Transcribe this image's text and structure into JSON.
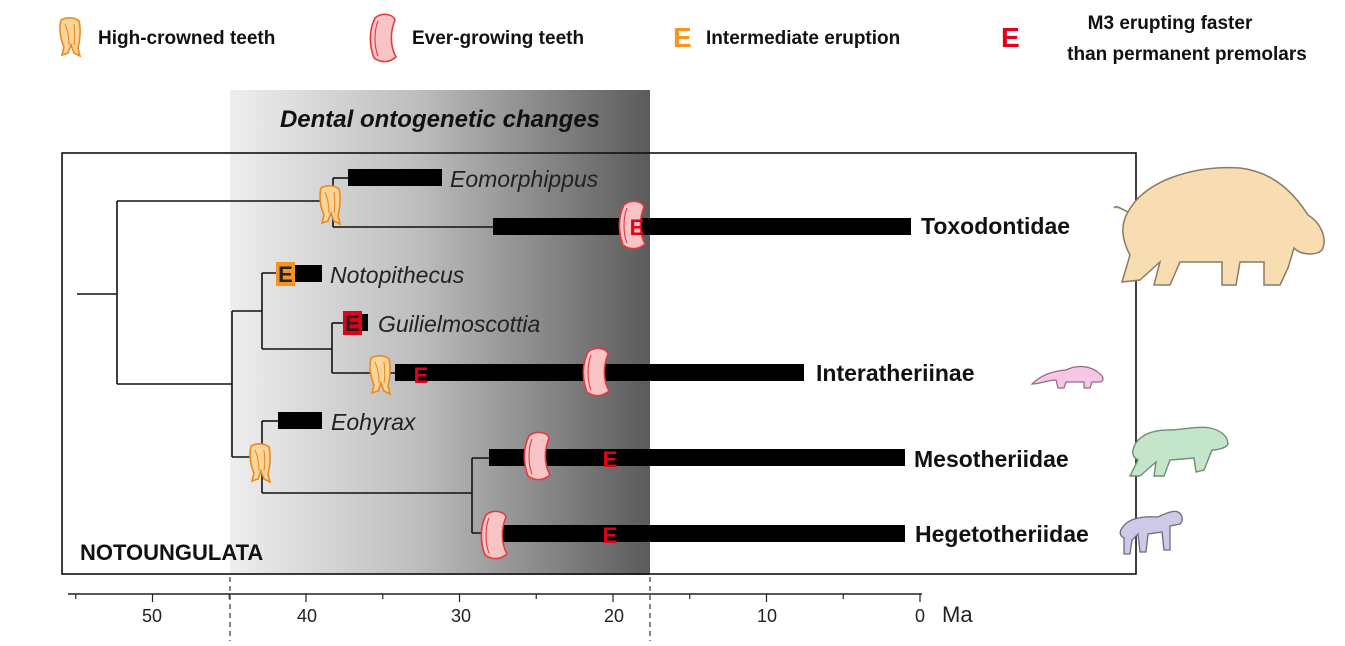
{
  "legend": {
    "high_crowned": "High-crowned teeth",
    "ever_growing": "Ever-growing teeth",
    "intermediate_letter": "E",
    "intermediate_label": "Intermediate eruption",
    "m3_letter": "E",
    "m3_line1": "M3 erupting faster",
    "m3_line2": "than permanent premolars"
  },
  "panel": {
    "title": "Dental ontogenetic changes",
    "group_label": "NOTOUNGULATA"
  },
  "taxa": {
    "eomorphippus": "Eomorphippus",
    "toxodontidae": "Toxodontidae",
    "notopithecus": "Notopithecus",
    "guilielmoscottia": "Guilielmoscottia",
    "interatheriinae": "Interatheriinae",
    "eohyrax": "Eohyrax",
    "mesotheriidae": "Mesotheriidae",
    "hegetotheriidae": "Hegetotheriidae"
  },
  "axis": {
    "unit": "Ma",
    "ticks": [
      "50",
      "40",
      "30",
      "20",
      "10",
      "0"
    ]
  },
  "colors": {
    "orange": "#f7941d",
    "red": "#e3001b",
    "tooth_fill": "#fbd49a",
    "evergrow_fill": "#f9c4c6",
    "toxo_fill": "#f9ddb2",
    "inter_fill": "#f6c6e6",
    "meso_fill": "#c3e6cb",
    "hege_fill": "#cfc8e6"
  }
}
